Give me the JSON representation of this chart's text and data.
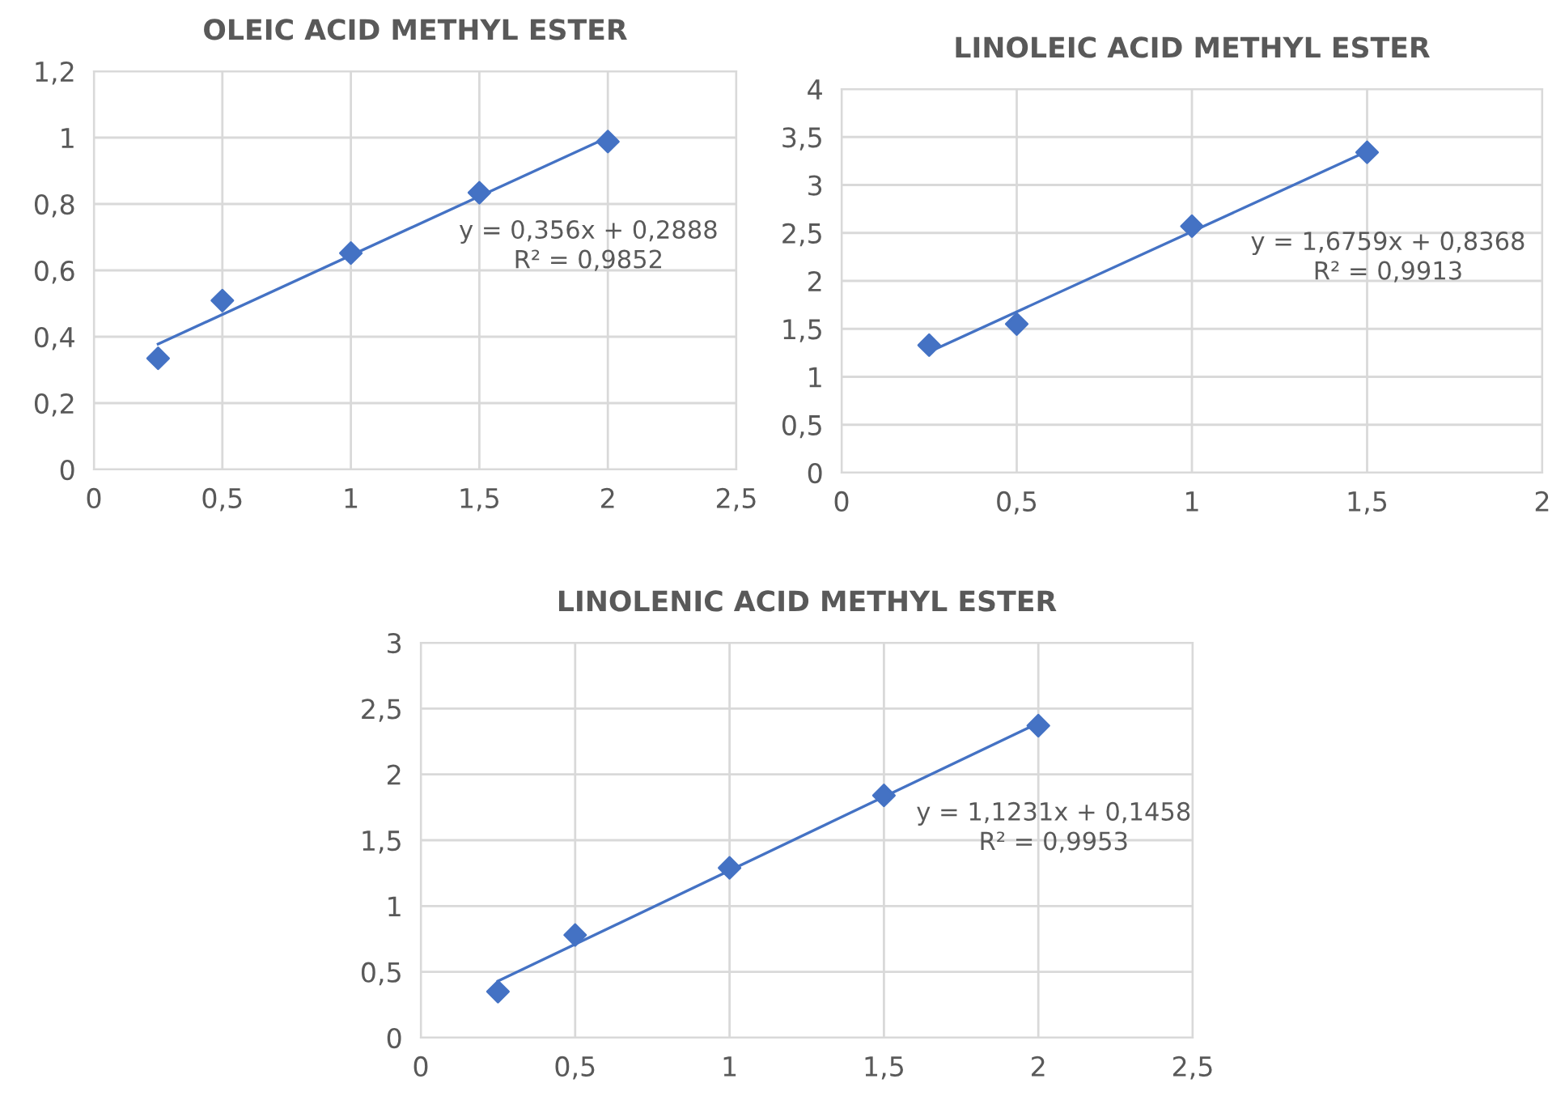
{
  "chart_data": [
    {
      "type": "scatter",
      "title": "OLEIC ACID METHYL ESTER",
      "marker": "diamond",
      "grid": true,
      "series": [
        {
          "type": "scatter",
          "color": "#4472c4",
          "x": [
            0.25,
            0.5,
            1,
            1.5,
            2
          ],
          "values": [
            0.335,
            0.509,
            0.652,
            0.834,
            0.988
          ]
        },
        {
          "type": "line",
          "color": "#4472c4",
          "marker": "none",
          "x": [
            0.25,
            2
          ],
          "values": [
            0.378,
            1.001
          ]
        }
      ],
      "xlim": [
        0,
        2.5
      ],
      "xticks": [
        0,
        {
          "value": 0.5,
          "label": "0,5"
        },
        1,
        {
          "value": 1.5,
          "label": "1,5"
        },
        2,
        {
          "value": 2.5,
          "label": "2,5"
        }
      ],
      "ylim": [
        0,
        1.2
      ],
      "yticks": [
        0,
        {
          "value": 0.2,
          "label": "0,2"
        },
        {
          "value": 0.4,
          "label": "0,4"
        },
        {
          "value": 0.6,
          "label": "0,6"
        },
        {
          "value": 0.8,
          "label": "0,8"
        },
        1,
        {
          "value": 1.2,
          "label": "1,2"
        }
      ],
      "annotations": [
        "y = 0,356x + 0,2888\nR² = 0,9852"
      ]
    },
    {
      "type": "scatter",
      "title": "LINOLEIC ACID METHYL ESTER",
      "marker": "diamond",
      "grid": true,
      "series": [
        {
          "type": "scatter",
          "color": "#4472c4",
          "x": [
            0.25,
            0.5,
            1,
            1.5
          ],
          "values": [
            1.33,
            1.55,
            2.57,
            3.34
          ]
        },
        {
          "type": "line",
          "color": "#4472c4",
          "marker": "none",
          "x": [
            0.25,
            1.5
          ],
          "values": [
            1.26,
            3.35
          ]
        }
      ],
      "xlim": [
        0,
        2
      ],
      "xticks": [
        0,
        {
          "value": 0.5,
          "label": "0,5"
        },
        1,
        {
          "value": 1.5,
          "label": "1,5"
        },
        2
      ],
      "ylim": [
        0,
        4
      ],
      "yticks": [
        0,
        {
          "value": 0.5,
          "label": "0,5"
        },
        1,
        {
          "value": 1.5,
          "label": "1,5"
        },
        2,
        {
          "value": 2.5,
          "label": "2,5"
        },
        3,
        {
          "value": 3.5,
          "label": "3,5"
        },
        4
      ],
      "annotations": [
        "y = 1,6759x + 0,8368\nR² = 0,9913"
      ]
    },
    {
      "type": "scatter",
      "title": "LINOLENIC ACID METHYL ESTER",
      "marker": "diamond",
      "grid": true,
      "series": [
        {
          "type": "scatter",
          "color": "#4472c4",
          "x": [
            0.25,
            0.5,
            1,
            1.5,
            2
          ],
          "values": [
            0.35,
            0.78,
            1.29,
            1.84,
            2.37
          ]
        },
        {
          "type": "line",
          "color": "#4472c4",
          "marker": "none",
          "x": [
            0.25,
            2
          ],
          "values": [
            0.43,
            2.39
          ]
        }
      ],
      "xlim": [
        0,
        2.5
      ],
      "xticks": [
        0,
        {
          "value": 0.5,
          "label": "0,5"
        },
        1,
        {
          "value": 1.5,
          "label": "1,5"
        },
        2,
        {
          "value": 2.5,
          "label": "2,5"
        }
      ],
      "ylim": [
        0,
        3
      ],
      "yticks": [
        0,
        {
          "value": 0.5,
          "label": "0,5"
        },
        1,
        {
          "value": 1.5,
          "label": "1,5"
        },
        2,
        {
          "value": 2.5,
          "label": "2,5"
        },
        3
      ],
      "annotations": [
        "y = 1,1231x + 0,1458\nR² = 0,9953"
      ]
    }
  ]
}
